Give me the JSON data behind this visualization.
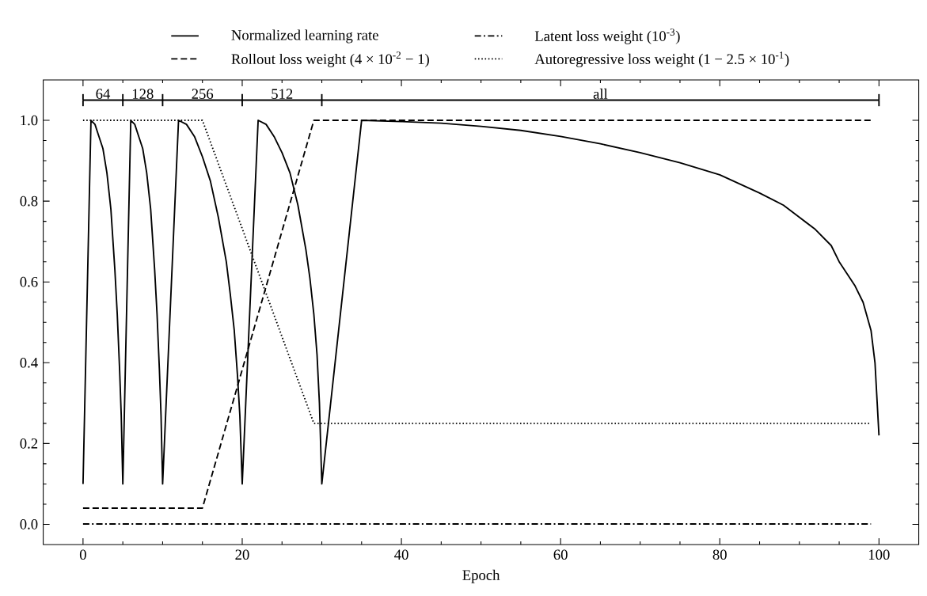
{
  "chart_data": {
    "type": "line",
    "xlabel": "Epoch",
    "xlim": [
      -5,
      105
    ],
    "ylim": [
      -0.05,
      1.1
    ],
    "xticks": [
      0,
      20,
      40,
      60,
      80,
      100
    ],
    "yticks": [
      {
        "value": 0,
        "label": "0.0"
      },
      {
        "value": 0.2,
        "label": "0.2"
      },
      {
        "value": 0.4,
        "label": "0.4"
      },
      {
        "value": 0.6,
        "label": "0.6"
      },
      {
        "value": 0.8,
        "label": "0.8"
      },
      {
        "value": 1,
        "label": "1.0"
      }
    ],
    "grid": false,
    "legend": "top",
    "series": [
      {
        "name": "Normalized learning rate",
        "color": "#000000",
        "line_style": "solid",
        "x": [
          0,
          1,
          1.5,
          2,
          2.5,
          3,
          3.5,
          4,
          4.3,
          4.6,
          4.8,
          5,
          6,
          6.5,
          7,
          7.5,
          8,
          8.5,
          9,
          9.3,
          9.6,
          9.8,
          10,
          12,
          13,
          14,
          15,
          16,
          17,
          18,
          18.5,
          19,
          19.4,
          19.7,
          20,
          22,
          23,
          24,
          25,
          26,
          27,
          28,
          28.5,
          29,
          29.4,
          29.7,
          30,
          35,
          40,
          45,
          50,
          55,
          60,
          65,
          70,
          75,
          80,
          85,
          88,
          90,
          92,
          94,
          95,
          96,
          97,
          98,
          99,
          99.5,
          100
        ],
        "values": [
          0.1,
          1.0,
          0.99,
          0.96,
          0.93,
          0.87,
          0.78,
          0.63,
          0.52,
          0.38,
          0.27,
          0.1,
          1.0,
          0.99,
          0.96,
          0.93,
          0.87,
          0.78,
          0.63,
          0.52,
          0.38,
          0.27,
          0.1,
          1.0,
          0.99,
          0.96,
          0.91,
          0.85,
          0.76,
          0.65,
          0.57,
          0.48,
          0.37,
          0.27,
          0.1,
          1.0,
          0.99,
          0.96,
          0.92,
          0.87,
          0.79,
          0.68,
          0.61,
          0.52,
          0.42,
          0.3,
          0.1,
          1.0,
          0.997,
          0.993,
          0.985,
          0.975,
          0.96,
          0.942,
          0.92,
          0.895,
          0.865,
          0.82,
          0.79,
          0.76,
          0.73,
          0.69,
          0.65,
          0.62,
          0.59,
          0.55,
          0.48,
          0.4,
          0.22
        ]
      },
      {
        "name": "Latent loss weight (10$^{-3}$)",
        "color": "#000000",
        "line_style": "dashdot",
        "x": [
          0,
          99
        ],
        "values": [
          0.001,
          0.001
        ]
      },
      {
        "name": "Rollout loss weight (4 × 10$^{-2}$ − 1)",
        "color": "#000000",
        "line_style": "dashed",
        "x": [
          0,
          15,
          29,
          99
        ],
        "values": [
          0.04,
          0.04,
          1.0,
          1.0
        ]
      },
      {
        "name": "Autoregressive loss weight (1 − 2.5 × 10$^{-1}$)",
        "color": "#000000",
        "line_style": "dotted",
        "x": [
          0,
          15,
          29,
          99
        ],
        "values": [
          1.0,
          1.0,
          0.25,
          0.25
        ]
      },
      {
        "color": "#000000",
        "line_style": "solid",
        "x": [
          0,
          5,
          10,
          20,
          30,
          100
        ],
        "values": [
          1.05,
          1.05,
          1.05,
          1.05,
          1.05,
          1.05
        ],
        "errors": [
          0.015,
          0.015,
          0.015,
          0.015,
          0.015,
          0.015
        ]
      }
    ],
    "annotations": [
      {
        "text": "64",
        "x": 2.5,
        "y": 1.05
      },
      {
        "text": "128",
        "x": 7.5,
        "y": 1.05
      },
      {
        "text": "256",
        "x": 15,
        "y": 1.05
      },
      {
        "text": "512",
        "x": 25,
        "y": 1.05
      },
      {
        "text": "all",
        "x": 65,
        "y": 1.05
      }
    ]
  }
}
